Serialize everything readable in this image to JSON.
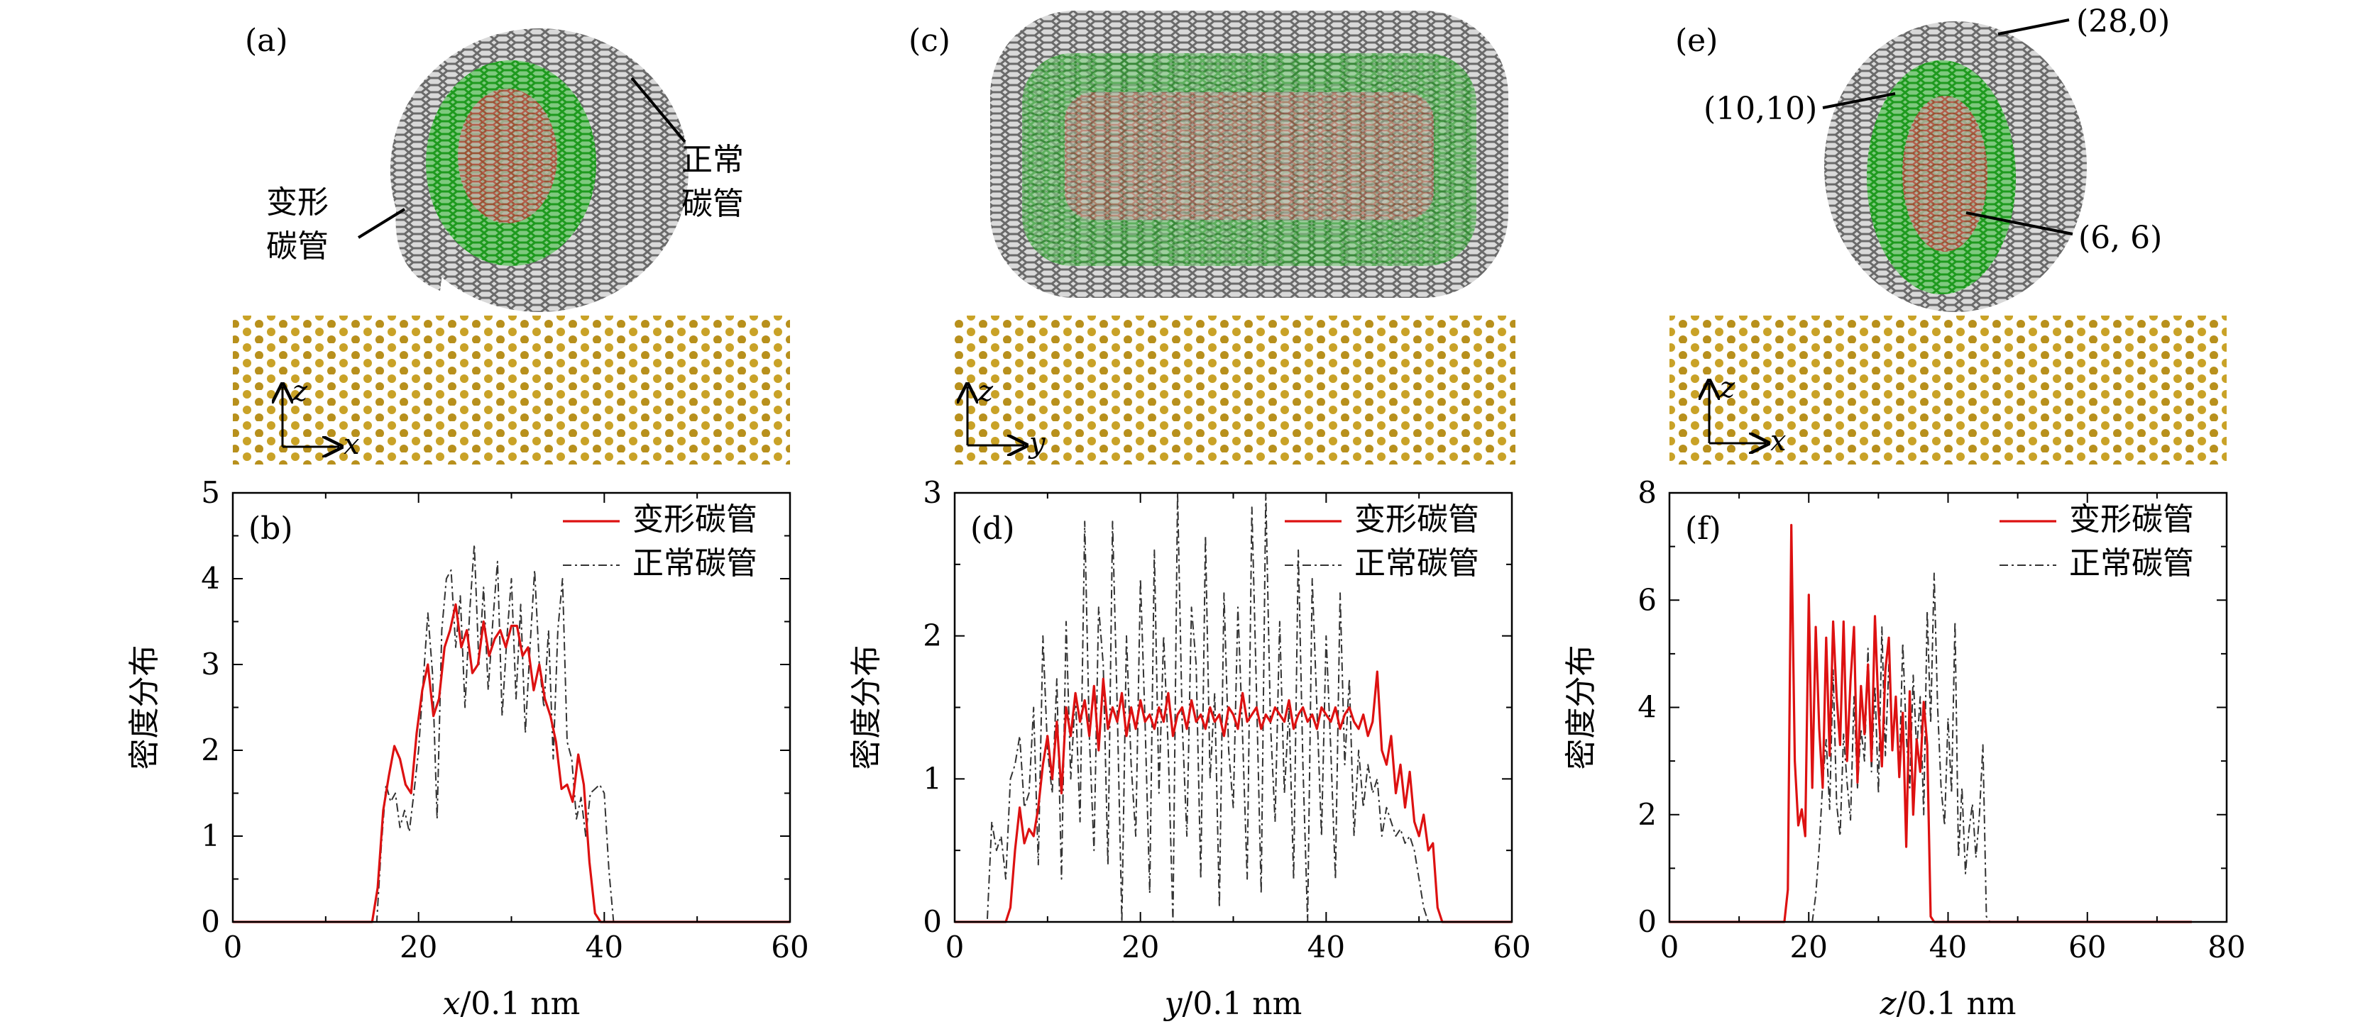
{
  "figure": {
    "top_panels": [
      {
        "letter": "(a)",
        "axis_v": "z",
        "axis_h": "x",
        "labels": [
          {
            "text": "变形\n碳管"
          },
          {
            "text": "正常\n碳管"
          }
        ]
      },
      {
        "letter": "(c)",
        "axis_v": "z",
        "axis_h": "y",
        "labels": []
      },
      {
        "letter": "(e)",
        "axis_v": "z",
        "axis_h": "x",
        "labels": [
          {
            "text": "(28,0)"
          },
          {
            "text": "(10,10)"
          },
          {
            "text": "(6, 6)"
          }
        ]
      }
    ]
  },
  "colors": {
    "deformed": "#dd1111",
    "normal": "#333333",
    "tube_outer": "#777777",
    "tube_mid": "#22aa22",
    "tube_inner": "#cc3333",
    "substrate": "#c9a227"
  },
  "chart_data": [
    {
      "type": "line",
      "panel": "(b)",
      "xlabel_var": "x",
      "xlabel_unit": "/0.1 nm",
      "ylabel": "密度分布",
      "xlim": [
        0,
        60
      ],
      "ylim": [
        0,
        5
      ],
      "xticks": [
        0,
        20,
        40,
        60
      ],
      "yticks": [
        0,
        1,
        2,
        3,
        4,
        5
      ],
      "grid": false,
      "legend": "top-right",
      "series": [
        {
          "name": "变形碳管",
          "style": "solid",
          "color": "#dd1111",
          "x": [
            0,
            15,
            15.6,
            16.2,
            16.8,
            17.4,
            18,
            18.6,
            19.2,
            19.8,
            20.4,
            21,
            21.6,
            22.2,
            22.8,
            23.4,
            24,
            24.6,
            25.2,
            25.8,
            26.4,
            27,
            27.6,
            28.2,
            28.8,
            29.4,
            30,
            30.6,
            31.2,
            31.8,
            32.4,
            33,
            33.6,
            34.2,
            34.8,
            35.4,
            36,
            36.6,
            37.2,
            37.8,
            38.4,
            39,
            39.6,
            40,
            60
          ],
          "y": [
            0,
            0,
            0.4,
            1.3,
            1.7,
            2.05,
            1.9,
            1.6,
            1.5,
            2.2,
            2.7,
            3.0,
            2.4,
            2.6,
            3.2,
            3.4,
            3.7,
            3.2,
            3.4,
            2.9,
            3.0,
            3.5,
            3.1,
            3.3,
            3.4,
            3.2,
            3.45,
            3.45,
            3.1,
            3.2,
            2.7,
            3.0,
            2.6,
            2.4,
            2.1,
            1.55,
            1.6,
            1.4,
            1.95,
            1.6,
            0.7,
            0.1,
            0,
            0,
            0
          ]
        },
        {
          "name": "正常碳管",
          "style": "dashdot",
          "color": "#333333",
          "x": [
            0,
            15.5,
            16,
            16.5,
            17,
            17.5,
            18,
            18.5,
            19,
            19.5,
            20,
            20.5,
            21,
            21.5,
            22,
            22.5,
            23,
            23.5,
            24,
            24.5,
            25,
            25.5,
            26,
            26.5,
            27,
            27.5,
            28,
            28.5,
            29,
            29.5,
            30,
            30.5,
            31,
            31.5,
            32,
            32.5,
            33,
            33.5,
            34,
            34.5,
            35,
            35.5,
            36,
            36.5,
            37,
            37.5,
            38,
            38.5,
            39,
            39.5,
            40,
            40.5,
            41,
            41.5,
            60
          ],
          "y": [
            0,
            0,
            0.9,
            1.6,
            1.4,
            1.5,
            1.1,
            1.3,
            1.05,
            1.5,
            2.0,
            2.8,
            3.6,
            2.9,
            1.2,
            3.4,
            4.0,
            4.1,
            3.2,
            3.8,
            2.5,
            3.6,
            4.4,
            3.0,
            3.9,
            2.7,
            3.5,
            4.2,
            2.4,
            3.3,
            4.0,
            2.6,
            3.7,
            2.2,
            3.2,
            4.1,
            3.0,
            2.5,
            3.4,
            1.9,
            3.4,
            4.0,
            2.1,
            1.9,
            1.2,
            1.45,
            1.0,
            1.5,
            1.55,
            1.6,
            1.5,
            0.6,
            0,
            0,
            0
          ]
        }
      ]
    },
    {
      "type": "line",
      "panel": "(d)",
      "xlabel_var": "y",
      "xlabel_unit": "/0.1 nm",
      "ylabel": "密度分布",
      "xlim": [
        0,
        60
      ],
      "ylim": [
        0,
        3
      ],
      "xticks": [
        0,
        20,
        40,
        60
      ],
      "yticks": [
        0,
        1,
        2,
        3
      ],
      "grid": false,
      "legend": "top-right",
      "series": [
        {
          "name": "变形碳管",
          "style": "solid",
          "color": "#dd1111",
          "x": [
            0,
            5.5,
            6,
            6.5,
            7,
            7.5,
            8,
            8.5,
            9,
            9.5,
            10,
            10.5,
            11,
            11.5,
            12,
            12.5,
            13,
            13.5,
            14,
            14.5,
            15,
            15.5,
            16,
            16.5,
            17,
            17.5,
            18,
            18.5,
            19,
            19.5,
            20,
            20.5,
            21,
            21.5,
            22,
            22.5,
            23,
            23.5,
            24,
            24.5,
            25,
            25.5,
            26,
            26.5,
            27,
            27.5,
            28,
            28.5,
            29,
            29.5,
            30,
            30.5,
            31,
            31.5,
            32,
            32.5,
            33,
            33.5,
            34,
            34.5,
            35,
            35.5,
            36,
            36.5,
            37,
            37.5,
            38,
            38.5,
            39,
            39.5,
            40,
            40.5,
            41,
            41.5,
            42,
            42.5,
            43,
            43.5,
            44,
            44.5,
            45,
            45.5,
            46,
            46.5,
            47,
            47.5,
            48,
            48.5,
            49,
            49.5,
            50,
            50.5,
            51,
            51.5,
            52,
            52.5,
            60
          ],
          "y": [
            0,
            0,
            0.1,
            0.5,
            0.8,
            0.55,
            0.65,
            0.6,
            0.8,
            1.1,
            1.3,
            1.0,
            1.4,
            0.9,
            1.5,
            1.3,
            1.6,
            1.4,
            1.55,
            1.3,
            1.65,
            1.2,
            1.7,
            1.35,
            1.5,
            1.4,
            1.6,
            1.3,
            1.5,
            1.35,
            1.55,
            1.4,
            1.45,
            1.35,
            1.5,
            1.4,
            1.6,
            1.3,
            1.45,
            1.5,
            1.35,
            1.55,
            1.4,
            1.45,
            1.35,
            1.5,
            1.4,
            1.45,
            1.3,
            1.5,
            1.45,
            1.35,
            1.6,
            1.4,
            1.45,
            1.5,
            1.35,
            1.45,
            1.4,
            1.5,
            1.45,
            1.4,
            1.55,
            1.35,
            1.45,
            1.5,
            1.4,
            1.45,
            1.35,
            1.5,
            1.45,
            1.4,
            1.5,
            1.35,
            1.45,
            1.5,
            1.4,
            1.35,
            1.45,
            1.3,
            1.4,
            1.75,
            1.2,
            1.1,
            1.3,
            0.9,
            1.1,
            0.8,
            1.05,
            0.7,
            0.6,
            0.75,
            0.5,
            0.55,
            0.1,
            0,
            0
          ]
        },
        {
          "name": "正常碳管",
          "style": "dashdot",
          "color": "#333333",
          "x": [
            0,
            3.5,
            4,
            4.5,
            5,
            5.5,
            6,
            6.5,
            7,
            7.5,
            8,
            8.5,
            9,
            9.5,
            10,
            10.5,
            11,
            11.5,
            12,
            12.5,
            13,
            13.5,
            14,
            14.5,
            15,
            15.5,
            16,
            16.5,
            17,
            17.5,
            18,
            18.5,
            19,
            19.5,
            20,
            20.5,
            21,
            21.5,
            22,
            22.5,
            23,
            23.5,
            24,
            24.5,
            25,
            25.5,
            26,
            26.5,
            27,
            27.5,
            28,
            28.5,
            29,
            29.5,
            30,
            30.5,
            31,
            31.5,
            32,
            32.5,
            33,
            33.5,
            34,
            34.5,
            35,
            35.5,
            36,
            36.5,
            37,
            37.5,
            38,
            38.5,
            39,
            39.5,
            40,
            40.5,
            41,
            41.5,
            42,
            42.5,
            43,
            43.5,
            44,
            44.5,
            45,
            45.5,
            46,
            46.5,
            47,
            47.5,
            48,
            48.5,
            49,
            49.5,
            50,
            50.5,
            51,
            51.5,
            52,
            52.5,
            53,
            53.5,
            60
          ],
          "y": [
            0,
            0,
            0.7,
            0.5,
            0.6,
            0.3,
            1.0,
            1.1,
            1.3,
            0.8,
            0.9,
            1.5,
            0.4,
            2.0,
            1.2,
            0.9,
            1.7,
            0.3,
            2.1,
            1.0,
            1.6,
            0.7,
            2.8,
            1.3,
            0.5,
            2.2,
            1.8,
            0.4,
            2.8,
            1.5,
            0.0,
            2.0,
            1.1,
            0.6,
            2.4,
            1.4,
            0.2,
            2.6,
            0.9,
            2.0,
            1.2,
            0.0,
            3.0,
            1.4,
            0.6,
            2.2,
            1.8,
            0.3,
            2.7,
            1.0,
            1.6,
            0.1,
            2.3,
            1.2,
            0.8,
            2.2,
            1.3,
            0.3,
            2.9,
            1.6,
            0.2,
            3.0,
            1.4,
            0.7,
            2.1,
            0.9,
            1.5,
            0.3,
            2.6,
            1.1,
            0.0,
            2.4,
            1.5,
            0.6,
            2.0,
            1.2,
            0.3,
            2.3,
            1.1,
            1.7,
            0.6,
            1.2,
            0.8,
            1.1,
            0.9,
            1.0,
            0.6,
            0.8,
            0.7,
            0.6,
            0.65,
            0.55,
            0.6,
            0.5,
            0.3,
            0.1,
            0,
            0,
            0,
            0,
            0,
            0,
            0
          ]
        }
      ]
    },
    {
      "type": "line",
      "panel": "(f)",
      "xlabel_var": "z",
      "xlabel_unit": "/0.1 nm",
      "ylabel": "密度分布",
      "xlim": [
        0,
        80
      ],
      "ylim": [
        0,
        8
      ],
      "xticks": [
        0,
        20,
        40,
        60,
        80
      ],
      "yticks": [
        0,
        2,
        4,
        6,
        8
      ],
      "grid": false,
      "legend": "top-right",
      "series": [
        {
          "name": "变形碳管",
          "style": "solid",
          "color": "#dd1111",
          "x": [
            0,
            16.5,
            17,
            17.5,
            18,
            18.5,
            19,
            19.5,
            20,
            20.5,
            21,
            21.5,
            22,
            22.5,
            23,
            23.5,
            24,
            24.5,
            25,
            25.5,
            26,
            26.5,
            27,
            27.5,
            28,
            28.5,
            29,
            29.5,
            30,
            30.5,
            31,
            31.5,
            32,
            32.5,
            33,
            33.5,
            34,
            34.5,
            35,
            35.5,
            36,
            36.5,
            37,
            37.5,
            38,
            38.5,
            75
          ],
          "y": [
            0,
            0,
            0.6,
            7.4,
            3.0,
            1.8,
            2.1,
            1.6,
            6.1,
            2.5,
            5.5,
            3.6,
            2.5,
            5.3,
            3.1,
            5.6,
            4.2,
            3.3,
            5.6,
            3.0,
            4.5,
            5.5,
            2.6,
            4.4,
            3.5,
            4.8,
            3.0,
            5.7,
            4.0,
            2.9,
            4.7,
            5.3,
            3.2,
            4.2,
            2.7,
            3.9,
            1.4,
            4.3,
            2.0,
            3.4,
            2.8,
            4.1,
            3.3,
            0.1,
            0,
            0,
            0
          ]
        },
        {
          "name": "正常碳管",
          "style": "dashdot",
          "color": "#333333",
          "x": [
            0,
            20.5,
            21,
            21.5,
            22,
            22.5,
            23,
            23.5,
            24,
            24.5,
            25,
            25.5,
            26,
            26.5,
            27,
            27.5,
            28,
            28.5,
            29,
            29.5,
            30,
            30.5,
            31,
            31.5,
            32,
            32.5,
            33,
            33.5,
            34,
            34.5,
            35,
            35.5,
            36,
            36.5,
            37,
            37.5,
            38,
            38.5,
            39,
            39.5,
            40,
            40.5,
            41,
            41.5,
            42,
            42.5,
            43,
            43.5,
            44,
            44.5,
            45,
            45.5,
            46,
            46.5,
            75
          ],
          "y": [
            0,
            0,
            0.5,
            1.4,
            2.6,
            3.4,
            2.1,
            4.7,
            2.2,
            1.6,
            3.5,
            2.6,
            1.9,
            4.2,
            2.5,
            3.6,
            3.0,
            5.1,
            2.8,
            4.4,
            2.4,
            5.5,
            3.1,
            4.8,
            3.3,
            4.1,
            2.8,
            5.2,
            3.5,
            2.5,
            4.6,
            3.2,
            4.2,
            2.0,
            5.8,
            3.7,
            6.5,
            4.0,
            2.5,
            1.8,
            3.8,
            2.4,
            5.6,
            1.2,
            2.5,
            0.9,
            1.7,
            2.2,
            1.2,
            2.0,
            3.3,
            0.1,
            0,
            0,
            0
          ]
        }
      ]
    }
  ]
}
